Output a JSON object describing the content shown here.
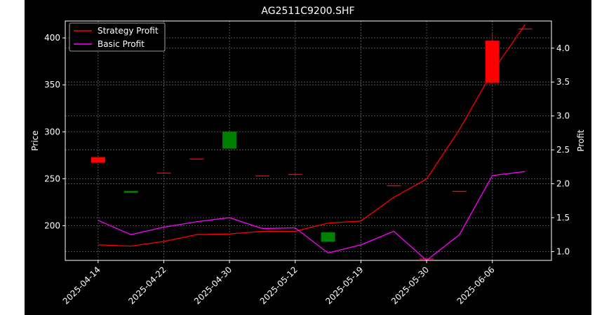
{
  "chart_data": {
    "type": "candlestick-with-lines",
    "title": "AG2511C9200.SHF",
    "ylabel_left": "Price",
    "ylabel_right": "Profit",
    "xlabel": "",
    "ylim_left": [
      163,
      418
    ],
    "ylim_right": [
      0.87,
      4.4
    ],
    "yticks_left": [
      200,
      250,
      300,
      350,
      400
    ],
    "yticks_right": [
      1.0,
      1.5,
      2.0,
      2.5,
      3.0,
      3.5,
      4.0
    ],
    "x_index_range": [
      -1.0,
      13.8
    ],
    "x_ticks": [
      {
        "index": 0,
        "label": "2025-04-14"
      },
      {
        "index": 2,
        "label": "2025-04-22"
      },
      {
        "index": 4,
        "label": "2025-04-30"
      },
      {
        "index": 6,
        "label": "2025-05-12"
      },
      {
        "index": 8,
        "label": "2025-05-19"
      },
      {
        "index": 10,
        "label": "2025-05-30"
      },
      {
        "index": 12,
        "label": "2025-06-06"
      }
    ],
    "grid": true,
    "legend_position": "top-left",
    "colors": {
      "background": "#000000",
      "up": "#ff0000",
      "down": "#008000",
      "strategy": "#ff0000",
      "basic": "#ff00ff",
      "grid": "#666666"
    },
    "candles": [
      {
        "index": 0,
        "open": 267,
        "close": 273,
        "high": 273,
        "low": 267
      },
      {
        "index": 1,
        "open": 237,
        "close": 235,
        "high": 237,
        "low": 235
      },
      {
        "index": 2,
        "open": 255.5,
        "close": 256.5,
        "high": 256.5,
        "low": 255.5
      },
      {
        "index": 3,
        "open": 270.5,
        "close": 271.5,
        "high": 271.5,
        "low": 270.5
      },
      {
        "index": 4,
        "open": 300,
        "close": 282,
        "high": 300,
        "low": 282
      },
      {
        "index": 5,
        "open": 252.5,
        "close": 253.5,
        "high": 253.5,
        "low": 252.5
      },
      {
        "index": 6,
        "open": 254,
        "close": 255,
        "high": 255,
        "low": 254
      },
      {
        "index": 7,
        "open": 193,
        "close": 183,
        "high": 193,
        "low": 183
      },
      {
        "index": 9,
        "open": 242,
        "close": 243,
        "high": 243,
        "low": 242
      },
      {
        "index": 10,
        "open": 164,
        "close": 165,
        "high": 165,
        "low": 164
      },
      {
        "index": 11,
        "open": 236,
        "close": 237,
        "high": 237,
        "low": 236
      },
      {
        "index": 12,
        "open": 352,
        "close": 397,
        "high": 405,
        "low": 352
      },
      {
        "index": 13,
        "open": 409,
        "close": 410,
        "high": 410,
        "low": 409
      }
    ],
    "series": [
      {
        "name": "Strategy Profit",
        "axis": "right",
        "x": [
          0,
          1,
          2,
          3,
          4,
          5,
          6,
          7,
          8,
          9,
          10,
          11,
          12,
          13
        ],
        "values": [
          1.1,
          1.08,
          1.15,
          1.25,
          1.26,
          1.3,
          1.3,
          1.42,
          1.45,
          1.8,
          2.07,
          2.8,
          3.65,
          4.35
        ]
      },
      {
        "name": "Basic Profit",
        "axis": "right",
        "x": [
          0,
          1,
          2,
          3,
          4,
          5,
          6,
          7,
          8,
          9,
          10,
          11,
          12,
          13
        ],
        "values": [
          1.46,
          1.25,
          1.36,
          1.44,
          1.5,
          1.34,
          1.35,
          0.98,
          1.1,
          1.3,
          0.87,
          1.25,
          2.12,
          2.18
        ]
      }
    ]
  }
}
